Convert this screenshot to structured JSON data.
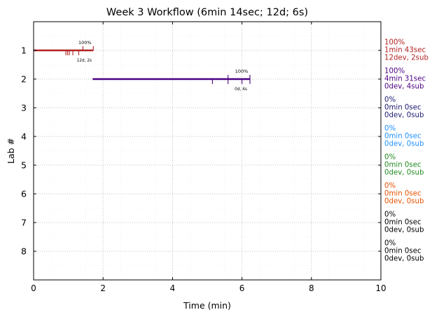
{
  "chart_data": {
    "type": "timeline",
    "title": "Week 3 Workflow (6min 14sec; 12d; 6s)",
    "xlabel": "Time (min)",
    "ylabel": "Lab #",
    "xlim": [
      0,
      10
    ],
    "ylim": [
      0,
      9
    ],
    "y_inverted": true,
    "x_ticks": [
      0,
      2,
      4,
      6,
      8,
      10
    ],
    "y_ticks": [
      1,
      2,
      3,
      4,
      5,
      6,
      7,
      8
    ],
    "grid": true,
    "labs": [
      {
        "lab": 1,
        "color": "#b22222",
        "segment": [
          0,
          1.72
        ],
        "dev_ticks": [
          0.93,
          0.98,
          1.03,
          1.13,
          1.3
        ],
        "sub_ticks": [
          1.42,
          1.72
        ],
        "pct_label": "100%",
        "count_label": "12d, 2s",
        "side_labels": [
          "100%",
          "1min 43sec",
          "12dev, 2sub"
        ]
      },
      {
        "lab": 2,
        "color": "#4b0082",
        "segment": [
          1.7,
          6.23
        ],
        "dev_ticks": [
          5.15,
          5.6,
          6.0,
          6.23
        ],
        "sub_ticks": [
          5.6,
          6.23
        ],
        "pct_label": "100%",
        "count_label": "0d, 4s",
        "side_labels": [
          "100%",
          "4min 31sec",
          "0dev, 4sub"
        ]
      },
      {
        "lab": 3,
        "color": "#191970",
        "side_labels": [
          "0%",
          "0min 0sec",
          "0dev, 0sub"
        ]
      },
      {
        "lab": 4,
        "color": "#1e90ff",
        "side_labels": [
          "0%",
          "0min 0sec",
          "0dev, 0sub"
        ]
      },
      {
        "lab": 5,
        "color": "#228b22",
        "side_labels": [
          "0%",
          "0min 0sec",
          "0dev, 0sub"
        ]
      },
      {
        "lab": 6,
        "color": "#e65100",
        "side_labels": [
          "0%",
          "0min 0sec",
          "0dev, 0sub"
        ]
      },
      {
        "lab": 7,
        "color": "#000000",
        "side_labels": [
          "0%",
          "0min 0sec",
          "0dev, 0sub"
        ]
      },
      {
        "lab": 8,
        "color": "#000000",
        "side_labels": [
          "0%",
          "0min 0sec",
          "0dev, 0sub"
        ]
      }
    ]
  }
}
